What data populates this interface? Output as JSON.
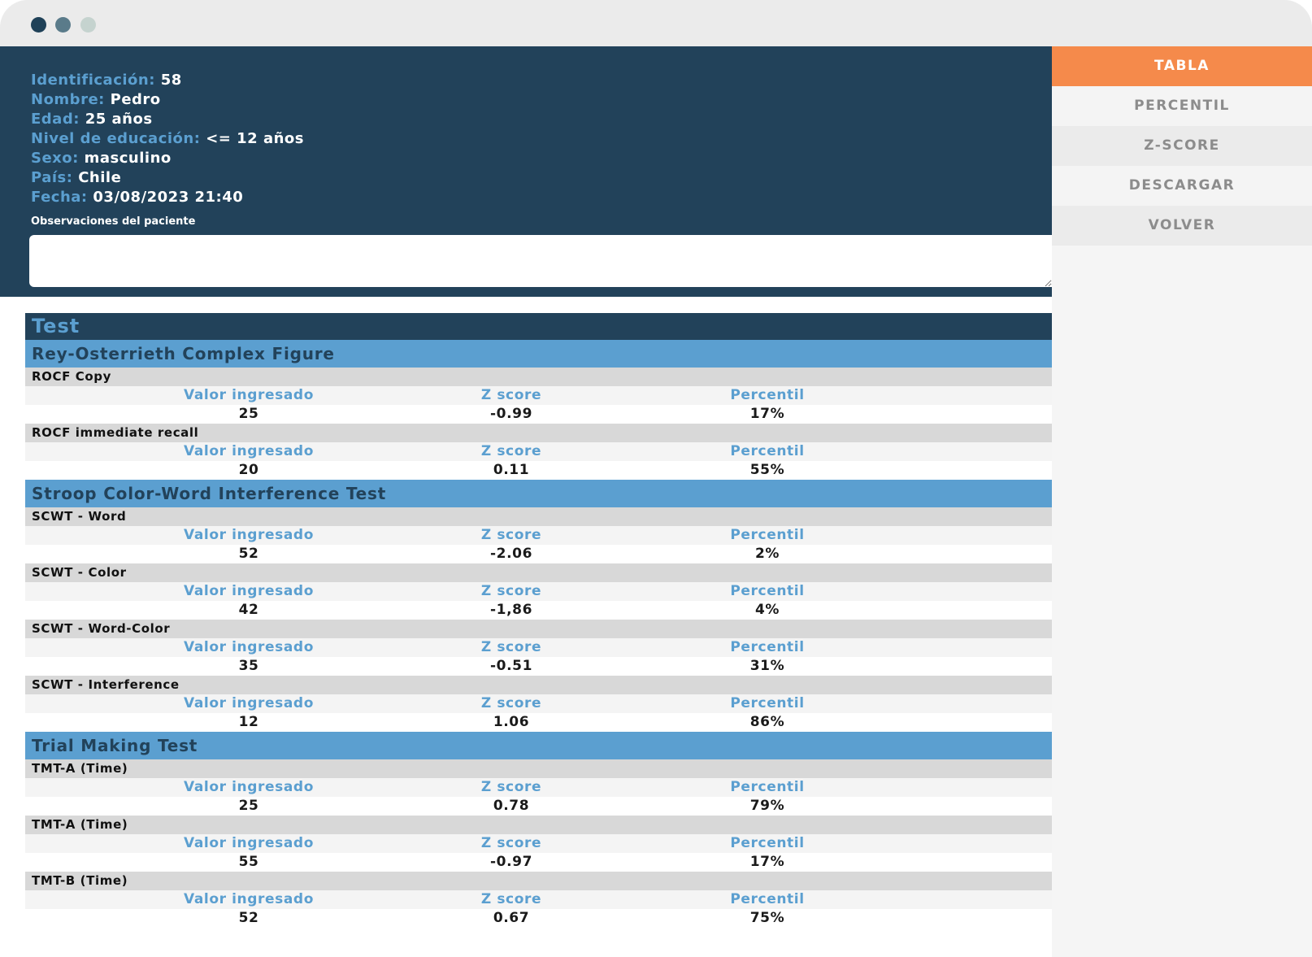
{
  "patient": {
    "fields": [
      {
        "label": "Identificación:",
        "value": "58"
      },
      {
        "label": "Nombre:",
        "value": "Pedro"
      },
      {
        "label": "Edad:",
        "value": "25 años"
      },
      {
        "label": "Nivel de educación:",
        "value": "<= 12 años"
      },
      {
        "label": "Sexo:",
        "value": "masculino"
      },
      {
        "label": "País:",
        "value": "Chile"
      },
      {
        "label": "Fecha:",
        "value": "03/08/2023 21:40"
      }
    ],
    "observations_label": "Observaciones del paciente",
    "observations_value": ""
  },
  "table": {
    "title": "Test",
    "col_labels": {
      "entered": "Valor ingresado",
      "z": "Z score",
      "percentile": "Percentil"
    },
    "sections": [
      {
        "name": "Rey-Osterrieth Complex Figure",
        "rows": [
          {
            "name": "ROCF Copy",
            "entered": "25",
            "z": "-0.99",
            "percentile": "17%"
          },
          {
            "name": "ROCF immediate recall",
            "entered": "20",
            "z": "0.11",
            "percentile": "55%"
          }
        ]
      },
      {
        "name": "Stroop Color-Word Interference Test",
        "rows": [
          {
            "name": "SCWT - Word",
            "entered": "52",
            "z": "-2.06",
            "percentile": "2%"
          },
          {
            "name": "SCWT - Color",
            "entered": "42",
            "z": "-1,86",
            "percentile": "4%"
          },
          {
            "name": "SCWT - Word-Color",
            "entered": "35",
            "z": "-0.51",
            "percentile": "31%"
          },
          {
            "name": "SCWT - Interference",
            "entered": "12",
            "z": "1.06",
            "percentile": "86%"
          }
        ]
      },
      {
        "name": "Trial Making Test",
        "rows": [
          {
            "name": "TMT-A (Time)",
            "entered": "25",
            "z": "0.78",
            "percentile": "79%"
          },
          {
            "name": "TMT-A (Time)",
            "entered": "55",
            "z": "-0.97",
            "percentile": "17%"
          },
          {
            "name": "TMT-B (Time)",
            "entered": "52",
            "z": "0.67",
            "percentile": "75%"
          }
        ]
      }
    ]
  },
  "sidebar": {
    "items": [
      {
        "label": "TABLA",
        "active": true
      },
      {
        "label": "PERCENTIL",
        "active": false
      },
      {
        "label": "Z-SCORE",
        "active": false
      },
      {
        "label": "DESCARGAR",
        "active": false
      },
      {
        "label": "VOLVER",
        "active": false
      }
    ]
  },
  "colors": {
    "navy": "#22425a",
    "light_blue": "#5b9fd0",
    "accent_orange": "#f58a4b",
    "row_gray": "#d8d8d8"
  }
}
